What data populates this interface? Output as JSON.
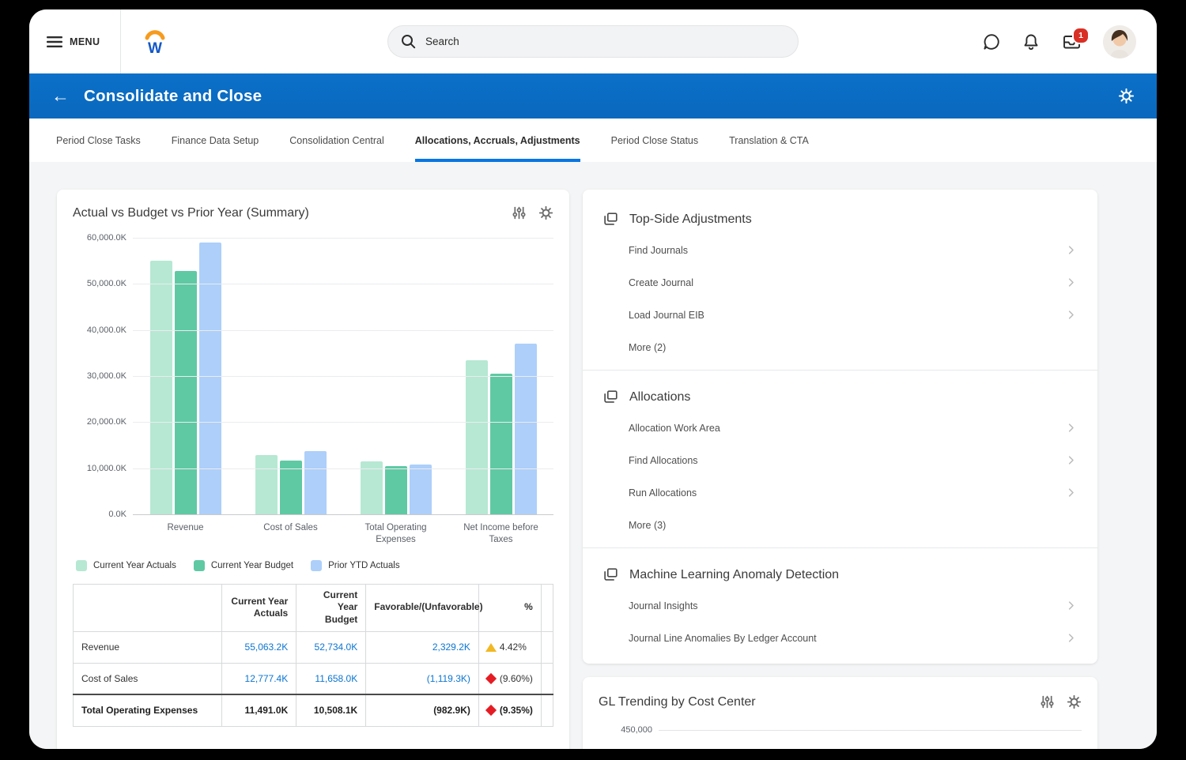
{
  "app": {
    "menu_label": "MENU",
    "logo_letter": "W",
    "search_placeholder": "Search",
    "inbox_badge": "1"
  },
  "header": {
    "title": "Consolidate and Close"
  },
  "tabs": {
    "active_index": 3,
    "items": [
      {
        "label": "Period Close Tasks"
      },
      {
        "label": "Finance Data Setup"
      },
      {
        "label": "Consolidation Central"
      },
      {
        "label": "Allocations, Accruals, Adjustments"
      },
      {
        "label": "Period Close Status"
      },
      {
        "label": "Translation & CTA"
      }
    ]
  },
  "chart_card": {
    "title": "Actual vs Budget vs Prior Year (Summary)",
    "table": {
      "headers": [
        "",
        "Current Year Actuals",
        "Current Year Budget",
        "Favorable/(Unfavorable)",
        "%",
        ""
      ],
      "rows": [
        {
          "label": "Revenue",
          "cya": "55,063.2K",
          "cyb": "52,734.0K",
          "fav": "2,329.2K",
          "pct": "4.42%",
          "indicator": "up",
          "link": true,
          "bold": false
        },
        {
          "label": "Cost of Sales",
          "cya": "12,777.4K",
          "cyb": "11,658.0K",
          "fav": "(1,119.3K)",
          "pct": "(9.60%)",
          "indicator": "down",
          "link": true,
          "bold": false
        },
        {
          "label": "Total Operating Expenses",
          "cya": "11,491.0K",
          "cyb": "10,508.1K",
          "fav": "(982.9K)",
          "pct": "(9.35%)",
          "indicator": "down",
          "link": false,
          "bold": true
        }
      ]
    }
  },
  "chart_data": {
    "type": "bar",
    "title": "Actual vs Budget vs Prior Year (Summary)",
    "categories": [
      "Revenue",
      "Cost of Sales",
      "Total Operating Expenses",
      "Net Income before Taxes"
    ],
    "series": [
      {
        "name": "Current Year Actuals",
        "color": "#b6e8d3",
        "values": [
          55063.2,
          12777.4,
          11491.0,
          33400
        ]
      },
      {
        "name": "Current Year Budget",
        "color": "#5fc9a4",
        "values": [
          52734.0,
          11658.0,
          10508.1,
          30600
        ]
      },
      {
        "name": "Prior YTD Actuals",
        "color": "#adcffa",
        "values": [
          59000,
          13800,
          10750,
          37100
        ]
      }
    ],
    "ylim": [
      0,
      60000
    ],
    "yticks": [
      {
        "v": 0,
        "label": "0.0K"
      },
      {
        "v": 10000,
        "label": "10,000.0K"
      },
      {
        "v": 20000,
        "label": "20,000.0K"
      },
      {
        "v": 30000,
        "label": "30,000.0K"
      },
      {
        "v": 40000,
        "label": "40,000.0K"
      },
      {
        "v": 50000,
        "label": "50,000.0K"
      },
      {
        "v": 60000,
        "label": "60,000.0K"
      }
    ],
    "grid": true,
    "legend_position": "bottom"
  },
  "right_panel": {
    "sections": [
      {
        "title": "Top-Side Adjustments",
        "items": [
          {
            "label": "Find Journals",
            "chevron": true
          },
          {
            "label": "Create Journal",
            "chevron": true
          },
          {
            "label": "Load Journal EIB",
            "chevron": true
          },
          {
            "label": "More (2)",
            "chevron": false
          }
        ]
      },
      {
        "title": "Allocations",
        "items": [
          {
            "label": "Allocation Work Area",
            "chevron": true
          },
          {
            "label": "Find Allocations",
            "chevron": true
          },
          {
            "label": "Run Allocations",
            "chevron": true
          },
          {
            "label": "More (3)",
            "chevron": false
          }
        ]
      },
      {
        "title": "Machine Learning Anomaly Detection",
        "items": [
          {
            "label": "Journal Insights",
            "chevron": true
          },
          {
            "label": "Journal Line Anomalies By Ledger Account",
            "chevron": true
          }
        ]
      }
    ]
  },
  "gl_card": {
    "title": "GL Trending by Cost Center",
    "visible_tick": "450,000"
  },
  "colors": {
    "header_blue": "#0a6cc4",
    "accent_blue": "#0875e1",
    "link_blue": "#0b75d1",
    "up_yellow": "#f2b824",
    "down_red": "#e51c23",
    "badge_red": "#d93025"
  }
}
